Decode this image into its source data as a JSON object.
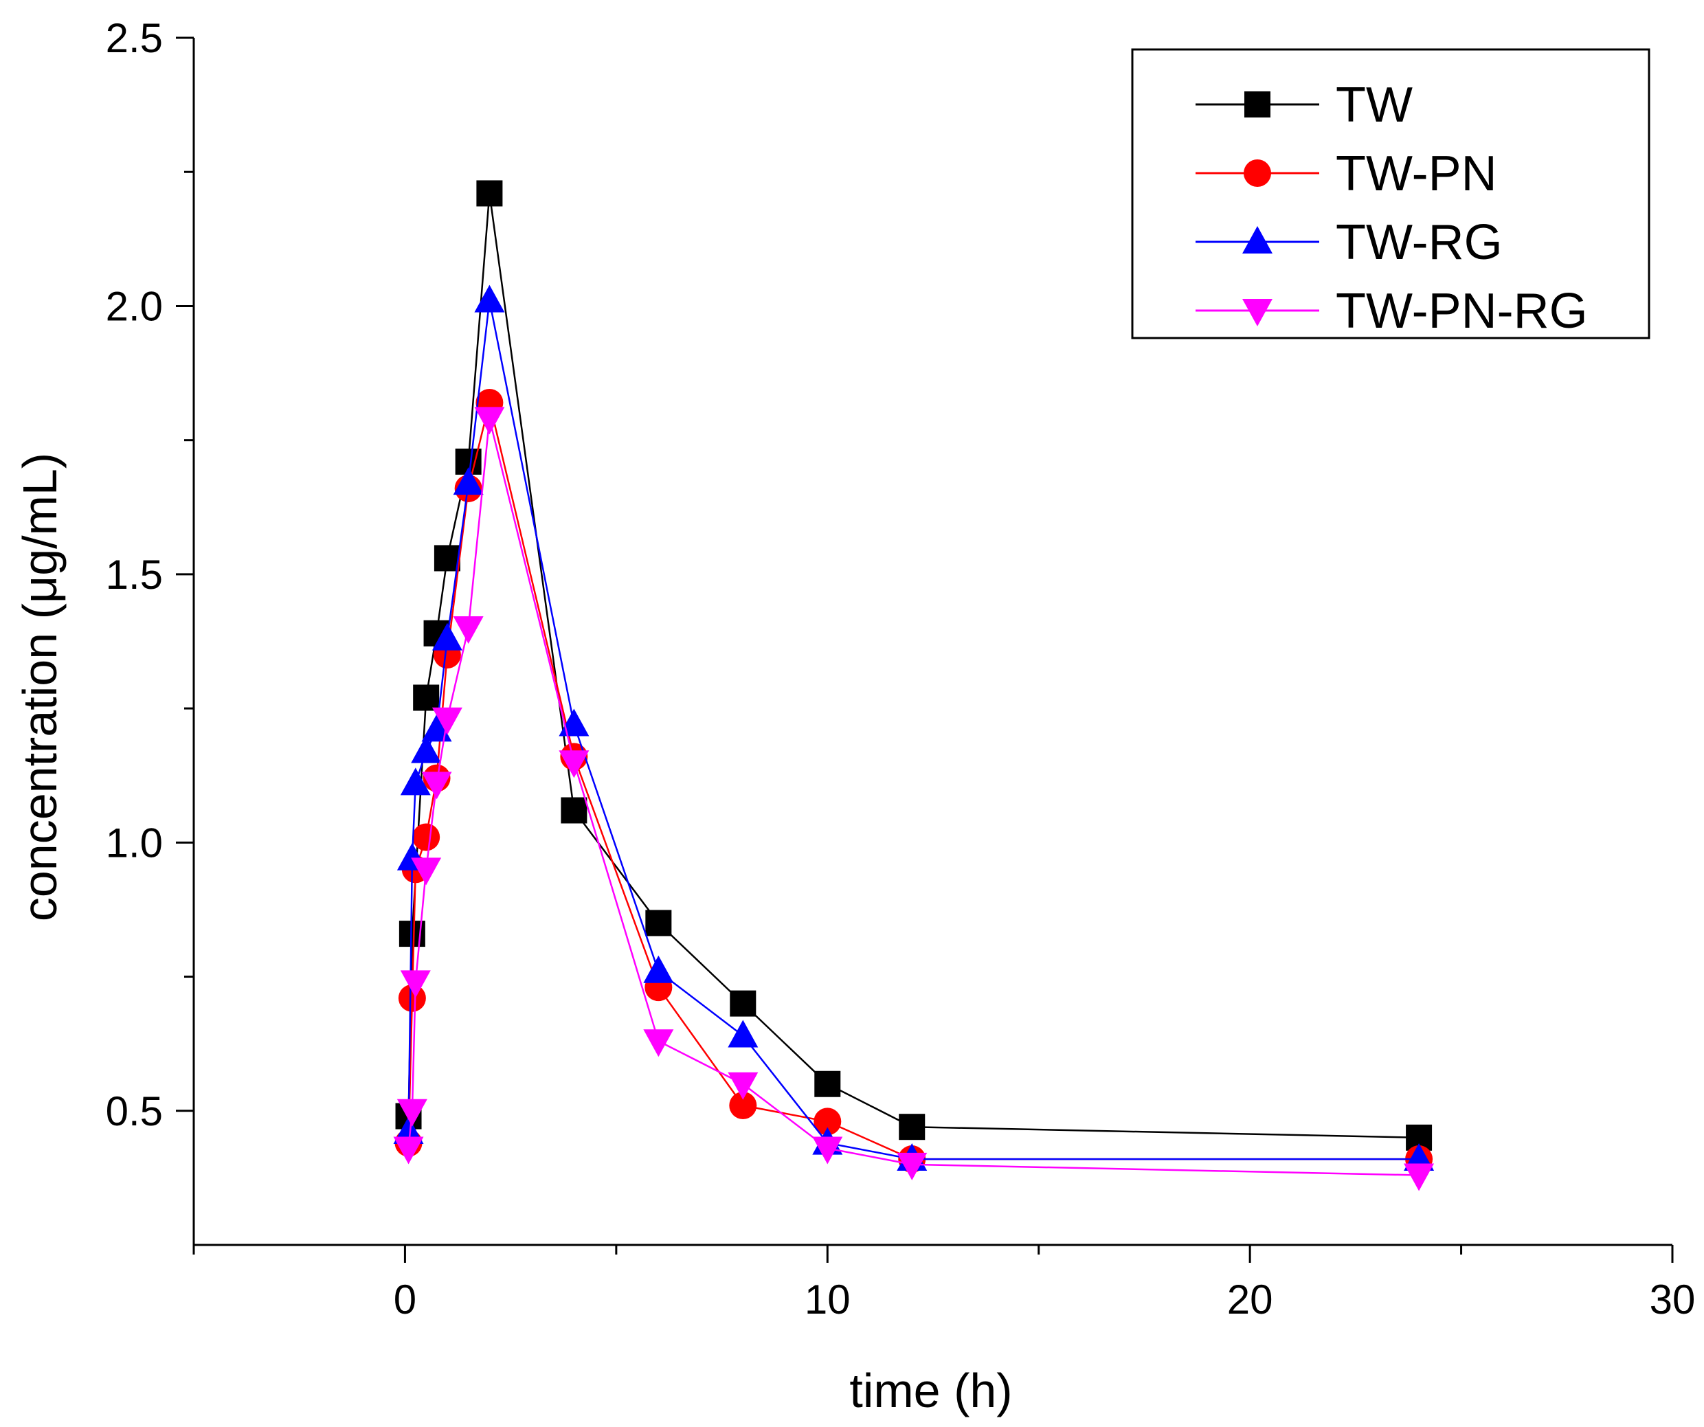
{
  "chart_data": {
    "type": "line",
    "xlabel": "time (h)",
    "ylabel": "concentration (μg/mL)",
    "xlim": [
      -5,
      30
    ],
    "ylim": [
      0.25,
      2.5
    ],
    "xticks": [
      0,
      10,
      20,
      30
    ],
    "xtick_labels": [
      "0",
      "10",
      "20",
      "30"
    ],
    "xminor": [
      -5,
      5,
      15,
      25
    ],
    "yticks": [
      0.5,
      1.0,
      1.5,
      2.0,
      2.5
    ],
    "ytick_labels": [
      "0.5",
      "1.0",
      "1.5",
      "2.0",
      "2.5"
    ],
    "yminor": [
      0.75,
      1.25,
      1.75,
      2.25
    ],
    "grid": false,
    "legend_position": "top-right",
    "series": [
      {
        "name": "TW",
        "color": "#000000",
        "marker": "square",
        "x": [
          0.083,
          0.17,
          0.5,
          0.75,
          1,
          1.5,
          2,
          4,
          6,
          8,
          10,
          12,
          24
        ],
        "y": [
          0.49,
          0.83,
          1.27,
          1.39,
          1.53,
          1.71,
          2.21,
          1.06,
          0.85,
          0.7,
          0.55,
          0.47,
          0.45
        ]
      },
      {
        "name": "TW-PN",
        "color": "#ff0000",
        "marker": "circle",
        "x": [
          0.083,
          0.17,
          0.25,
          0.5,
          0.75,
          1,
          1.5,
          2,
          4,
          6,
          8,
          10,
          12,
          24
        ],
        "y": [
          0.44,
          0.71,
          0.95,
          1.01,
          1.12,
          1.35,
          1.66,
          1.82,
          1.16,
          0.73,
          0.51,
          0.48,
          0.41,
          0.41
        ]
      },
      {
        "name": "TW-RG",
        "color": "#0000ff",
        "marker": "triangle-up",
        "x": [
          0.083,
          0.17,
          0.25,
          0.5,
          0.75,
          1,
          1.5,
          2,
          4,
          6,
          8,
          10,
          12,
          24
        ],
        "y": [
          0.46,
          0.97,
          1.11,
          1.17,
          1.21,
          1.38,
          1.67,
          2.01,
          1.22,
          0.76,
          0.64,
          0.44,
          0.41,
          0.41
        ]
      },
      {
        "name": "TW-PN-RG",
        "color": "#ff00ff",
        "marker": "triangle-down",
        "x": [
          0.083,
          0.17,
          0.25,
          0.5,
          0.75,
          1,
          1.5,
          2,
          4,
          6,
          8,
          10,
          12,
          24
        ],
        "y": [
          0.43,
          0.5,
          0.74,
          0.95,
          1.11,
          1.23,
          1.4,
          1.79,
          1.15,
          0.63,
          0.55,
          0.43,
          0.4,
          0.38
        ]
      }
    ]
  }
}
